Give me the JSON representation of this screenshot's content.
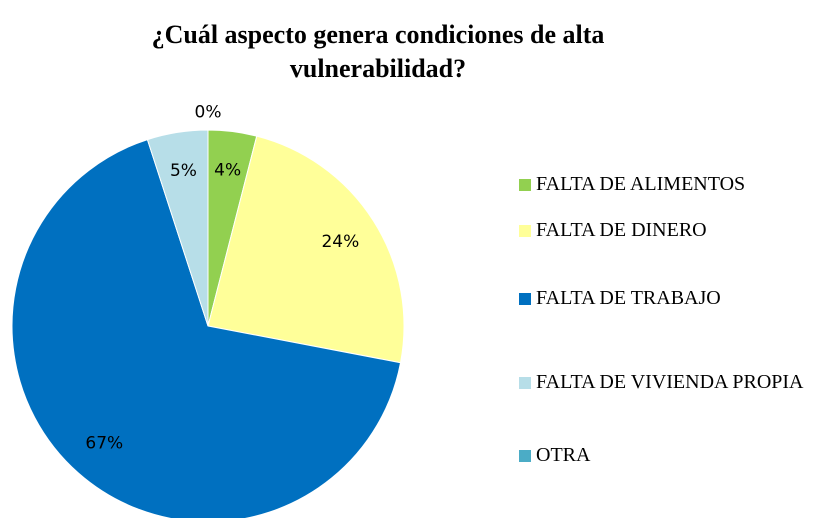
{
  "chart_data": {
    "type": "pie",
    "title": "¿Cuál aspecto genera condiciones de alta vulnerabilidad?",
    "categories": [
      "FALTA DE ALIMENTOS",
      "FALTA DE DINERO",
      "FALTA DE TRABAJO",
      "FALTA DE VIVIENDA PROPIA",
      "OTRA"
    ],
    "values": [
      4,
      24,
      67,
      5,
      0
    ],
    "value_labels": [
      "4%",
      "24%",
      "67%",
      "5%",
      "0%"
    ],
    "colors": [
      "#92d050",
      "#ffff99",
      "#0070c0",
      "#b7dee8",
      "#4bacc6"
    ],
    "legend": "right"
  }
}
